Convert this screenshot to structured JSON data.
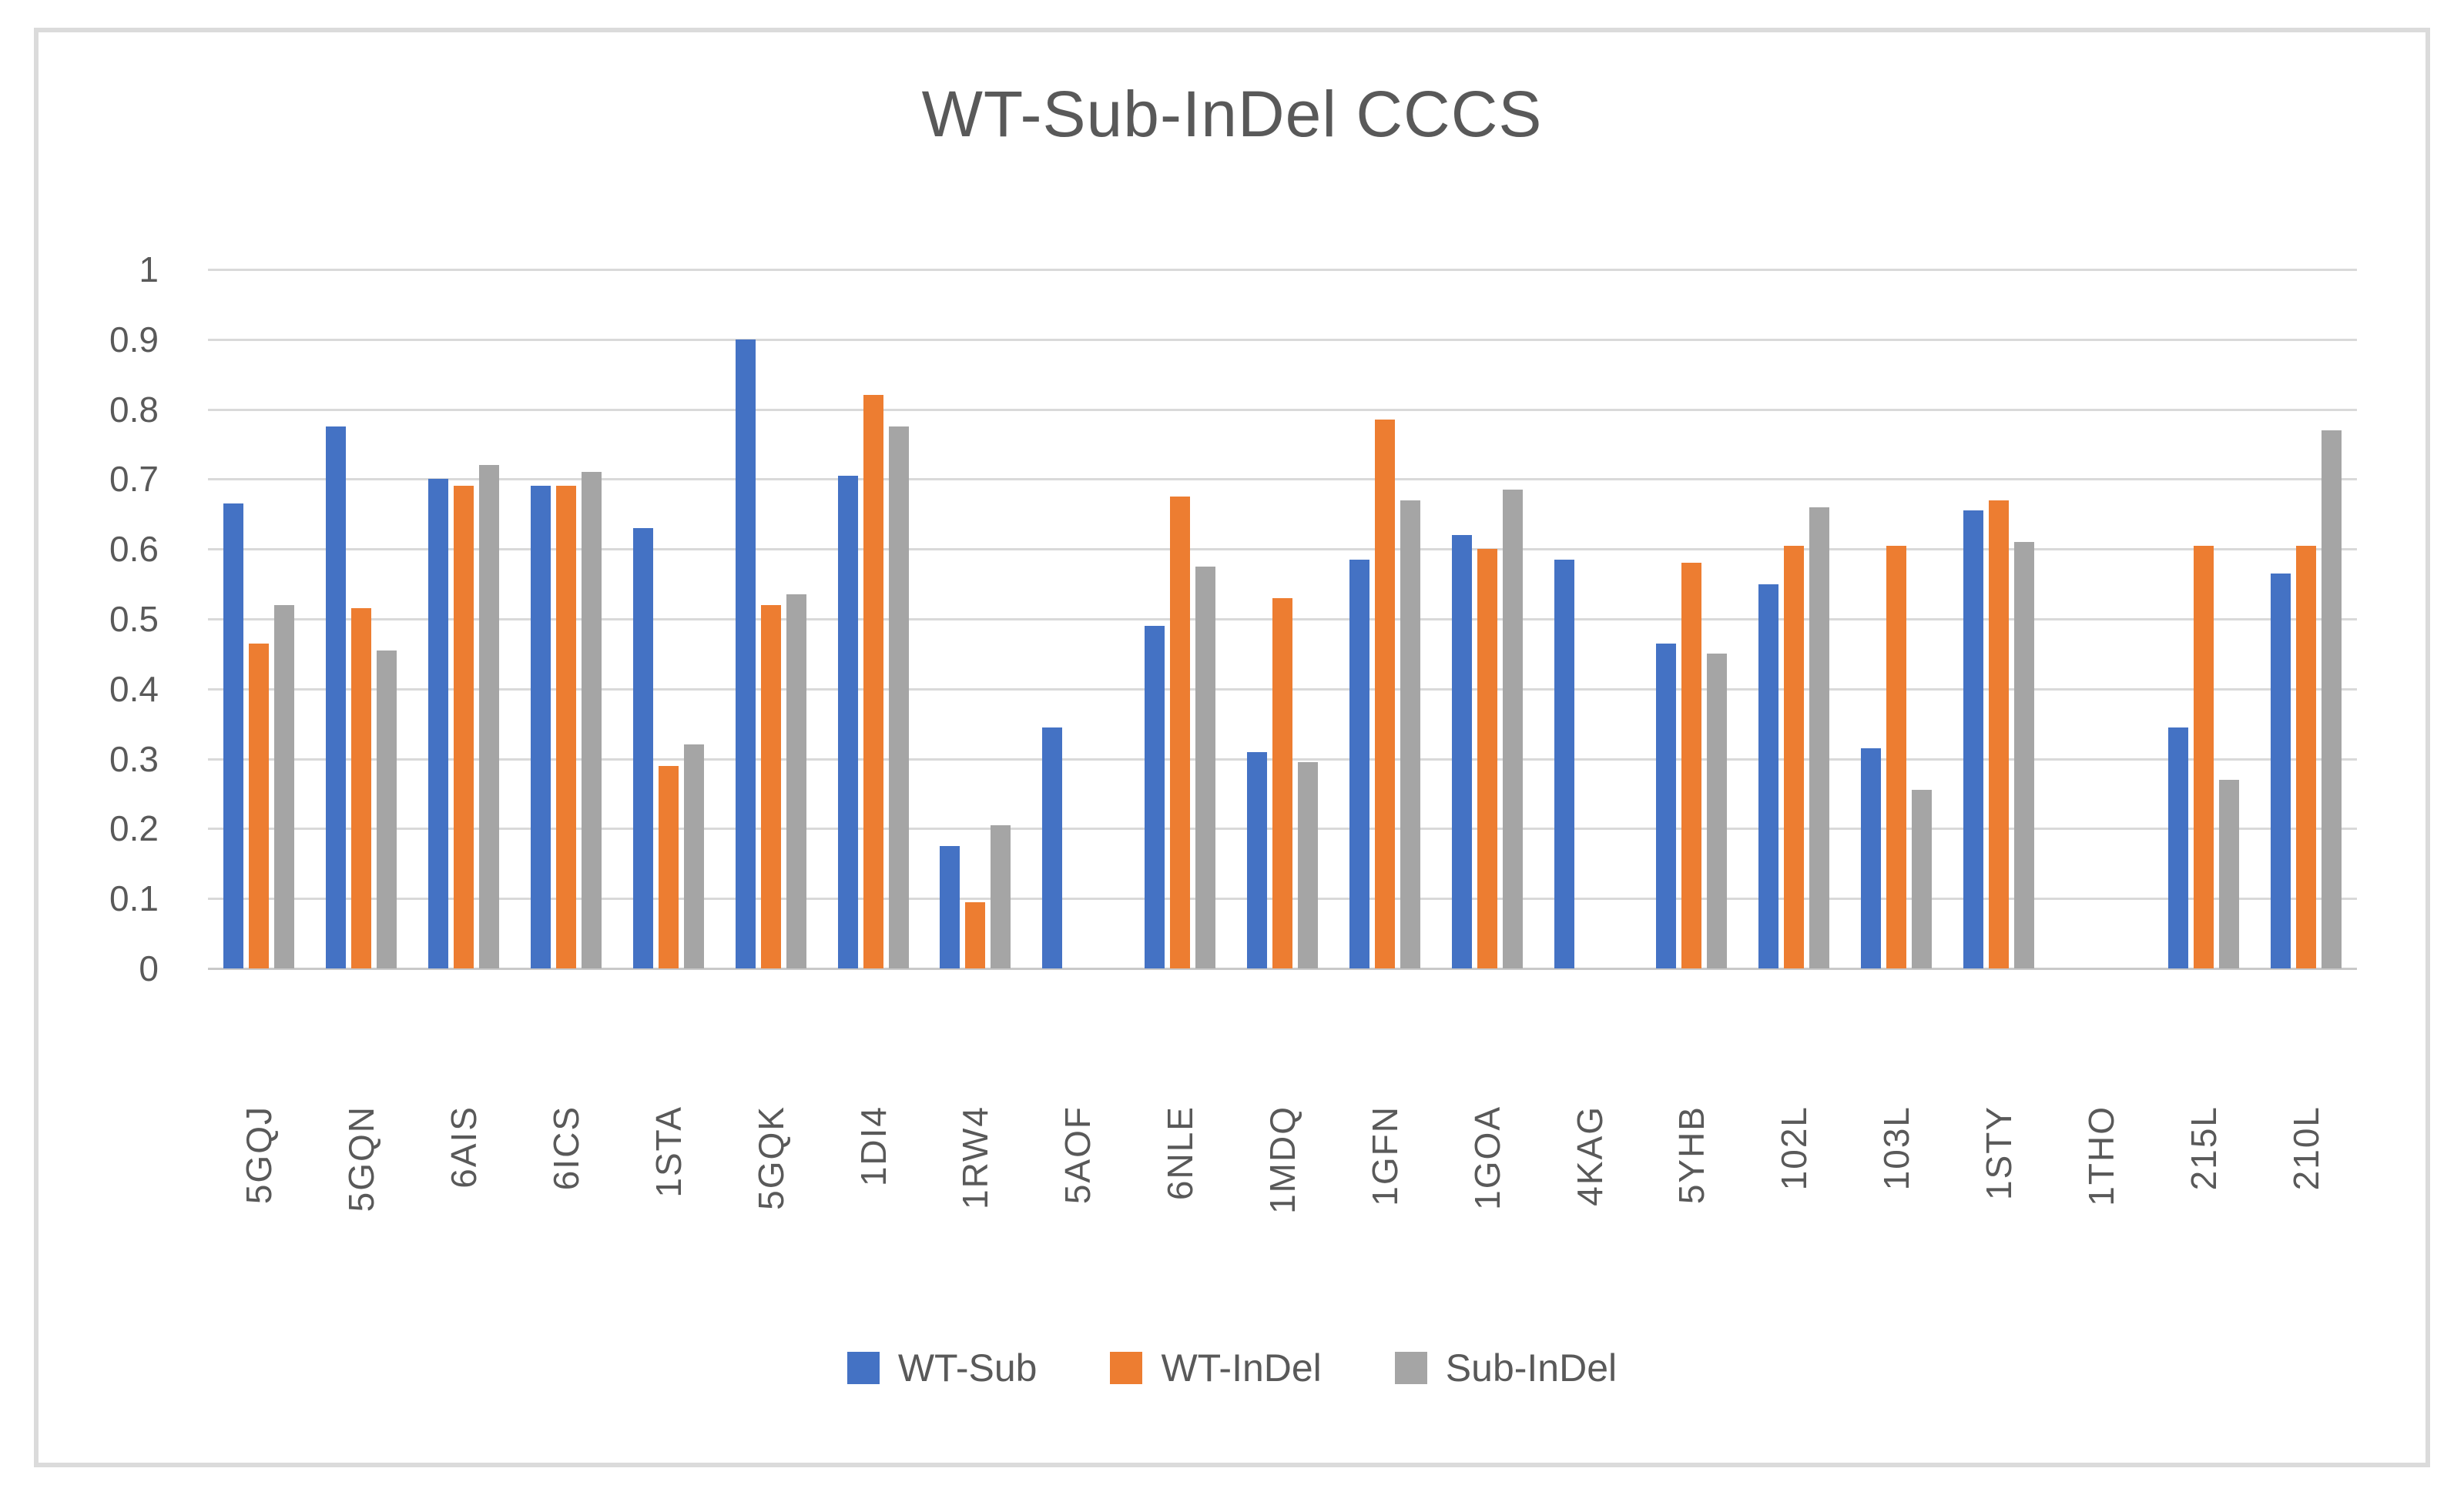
{
  "title": "WT-Sub-InDel CCCS",
  "colors": {
    "series_blue": "#4472C4",
    "series_orange": "#ED7D31",
    "series_gray": "#A5A5A5",
    "gridline": "#D9D9D9",
    "axis_line": "#C9C9C9",
    "text": "#595959",
    "frame_border": "#DBDBDB",
    "background": "#FFFFFF"
  },
  "chart_data": {
    "type": "bar",
    "title": "WT-Sub-InDel CCCS",
    "categories": [
      "5GQJ",
      "5GQN",
      "6AIS",
      "6ICS",
      "1STA",
      "5GQK",
      "1DI4",
      "1RW4",
      "5AOF",
      "6NLE",
      "1MDQ",
      "1GFN",
      "1GOA",
      "4KAG",
      "5YHB",
      "102L",
      "103L",
      "1STY",
      "1THO",
      "215L",
      "210L"
    ],
    "series": [
      {
        "name": "WT-Sub",
        "color": "#4472C4",
        "values": [
          0.665,
          0.775,
          0.7,
          0.69,
          0.63,
          0.9,
          0.705,
          0.175,
          0.345,
          0.49,
          0.31,
          0.585,
          0.62,
          0.585,
          0.465,
          0.55,
          0.315,
          0.655,
          0,
          0.345,
          0.565
        ]
      },
      {
        "name": "WT-InDel",
        "color": "#ED7D31",
        "values": [
          0.465,
          0.515,
          0.69,
          0.69,
          0.29,
          0.52,
          0.82,
          0.095,
          0,
          0.675,
          0.53,
          0.785,
          0.6,
          0,
          0.58,
          0.605,
          0.605,
          0.67,
          0,
          0.605,
          0.605
        ]
      },
      {
        "name": "Sub-InDel",
        "color": "#A5A5A5",
        "values": [
          0.52,
          0.455,
          0.72,
          0.71,
          0.32,
          0.535,
          0.775,
          0.205,
          0,
          0.575,
          0.295,
          0.67,
          0.685,
          0,
          0.45,
          0.66,
          0.255,
          0.61,
          0,
          0.27,
          0.77
        ]
      }
    ],
    "ylim": [
      0,
      1
    ],
    "ytick_step": 0.1,
    "ytick_labels": [
      "0",
      "0.1",
      "0.2",
      "0.3",
      "0.4",
      "0.5",
      "0.6",
      "0.7",
      "0.8",
      "0.9",
      "1"
    ],
    "xlabel": "",
    "ylabel": "",
    "grid": true,
    "legend_position": "bottom"
  }
}
